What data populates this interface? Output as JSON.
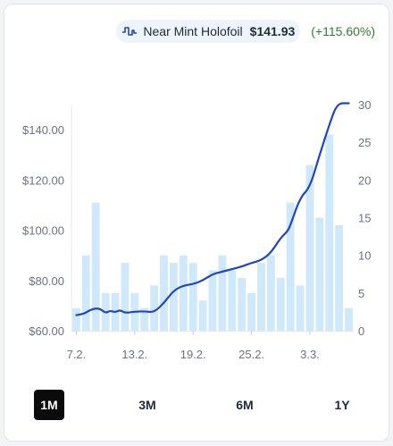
{
  "legend": {
    "name": "Near Mint Holofoil",
    "price": "$141.93",
    "change": "(+115.60%)",
    "icon": "price-history-icon",
    "change_color": "#2e7d32"
  },
  "ranges": [
    {
      "label": "1M",
      "active": true
    },
    {
      "label": "3M",
      "active": false
    },
    {
      "label": "6M",
      "active": false
    },
    {
      "label": "1Y",
      "active": false
    }
  ],
  "colors": {
    "line": "#1f45c7",
    "bar": "#cfe9fb",
    "grid": "#e6e8eb",
    "accent_active": "#0b0b0b"
  },
  "chart_data": {
    "type": "bar+line",
    "x_tick_labels": [
      "7.2.",
      "13.2.",
      "19.2.",
      "25.2.",
      "3.3."
    ],
    "y_left": {
      "ticks": [
        "$60.00",
        "$80.00",
        "$100.00",
        "$120.00",
        "$140.00"
      ],
      "range": [
        60,
        150
      ]
    },
    "y_right": {
      "ticks": [
        "0",
        "5",
        "10",
        "15",
        "20",
        "25",
        "30"
      ],
      "range": [
        0,
        30
      ]
    },
    "bars": [
      3,
      10,
      17,
      5,
      5,
      9,
      5,
      3,
      6,
      10,
      9,
      10,
      9,
      4,
      8,
      10,
      8,
      7,
      5,
      9,
      10,
      7,
      17,
      6,
      22,
      15,
      26,
      14,
      3
    ],
    "line": [
      [
        0,
        66.2
      ],
      [
        0.6,
        66.6
      ],
      [
        1,
        67.2
      ],
      [
        1.4,
        68.2
      ],
      [
        2,
        68.9
      ],
      [
        2.5,
        68.6
      ],
      [
        3,
        67.0
      ],
      [
        3.5,
        68.0
      ],
      [
        4,
        67.3
      ],
      [
        4.5,
        68.3
      ],
      [
        5,
        67.0
      ],
      [
        6,
        67.6
      ],
      [
        7,
        67.7
      ],
      [
        8,
        67.3
      ],
      [
        9,
        71.0
      ],
      [
        10,
        76.0
      ],
      [
        11,
        78.0
      ],
      [
        12,
        78.5
      ],
      [
        13,
        80.0
      ],
      [
        14,
        82.5
      ],
      [
        15,
        83.5
      ],
      [
        16,
        84.5
      ],
      [
        17,
        85.5
      ],
      [
        18,
        87.0
      ],
      [
        19,
        88.0
      ],
      [
        20,
        91.0
      ],
      [
        21,
        97.0
      ],
      [
        21.7,
        99.5
      ],
      [
        22,
        102.0
      ],
      [
        23,
        113.0
      ],
      [
        24,
        117.0
      ],
      [
        25,
        130.0
      ],
      [
        26,
        142.0
      ],
      [
        26.8,
        150.5
      ],
      [
        28,
        150.5
      ]
    ]
  }
}
